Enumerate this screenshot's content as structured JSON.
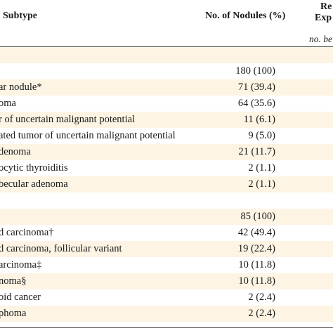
{
  "header": {
    "col_subtype": "Subtype",
    "col_nodules": "No. of Nodules (%)",
    "col_right_line1": "Re",
    "col_right_line2": "Exp",
    "col_right_sub": "no. be"
  },
  "group1": {
    "total": "180 (100)",
    "rows": [
      {
        "label": "ar nodule*",
        "value": "71 (39.4)"
      },
      {
        "label": "oma",
        "value": "64 (35.6)"
      },
      {
        "label": "r of uncertain malignant potential",
        "value": "11 (6.1)"
      },
      {
        "label": "ated tumor of uncertain malignant potential",
        "value": "9 (5.0)"
      },
      {
        "label": "denoma",
        "value": "21 (11.7)"
      },
      {
        "label": "ocytic thyroiditis",
        "value": "2 (1.1)"
      },
      {
        "label": "becular adenoma",
        "value": "2 (1.1)"
      }
    ]
  },
  "group2": {
    "total": "85 (100)",
    "rows": [
      {
        "label": "d carcinoma†",
        "value": "42 (49.4)"
      },
      {
        "label": "d carcinoma, follicular variant",
        "value": "19 (22.4)"
      },
      {
        "label": "arcinoma‡",
        "value": "10 (11.8)"
      },
      {
        "label": "noma§",
        "value": "10 (11.8)"
      },
      {
        "label": "oid cancer",
        "value": "2 (2.4)"
      },
      {
        "label": "phoma",
        "value": "2 (2.4)"
      }
    ]
  }
}
